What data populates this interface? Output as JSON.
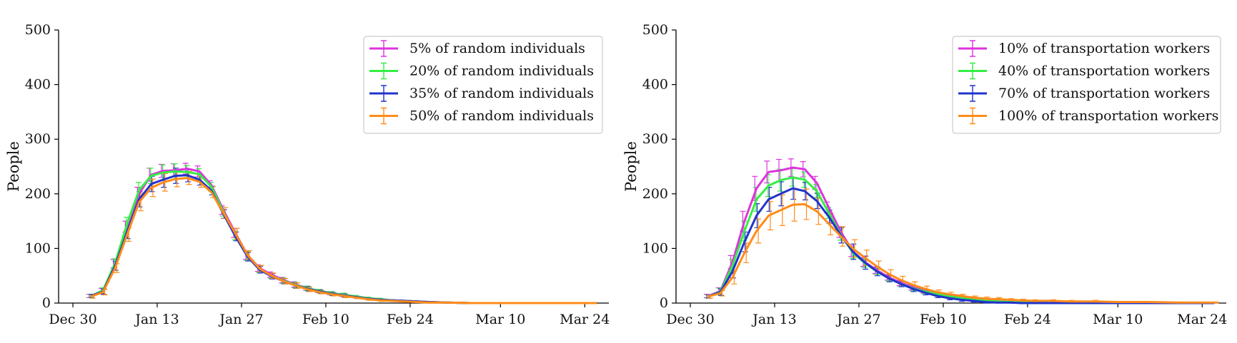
{
  "chart_data": [
    {
      "type": "line",
      "ylabel": "People",
      "xlabel": "",
      "title": "",
      "ylim": [
        0,
        500
      ],
      "yticks": [
        0,
        100,
        200,
        300,
        400,
        500
      ],
      "x_range": [
        "2019-12-30",
        "2020-03-28"
      ],
      "xticks": [
        {
          "date": "2019-12-30",
          "label": "Dec 30"
        },
        {
          "date": "2020-01-13",
          "label": "Jan 13"
        },
        {
          "date": "2020-01-27",
          "label": "Jan 27"
        },
        {
          "date": "2020-02-10",
          "label": "Feb 10"
        },
        {
          "date": "2020-02-24",
          "label": "Feb 24"
        },
        {
          "date": "2020-03-10",
          "label": "Mar 10"
        },
        {
          "date": "2020-03-24",
          "label": "Mar 24"
        }
      ],
      "legend_position": "top-right",
      "error_bars": true,
      "x": [
        "2020-01-02",
        "2020-01-04",
        "2020-01-06",
        "2020-01-08",
        "2020-01-10",
        "2020-01-12",
        "2020-01-14",
        "2020-01-16",
        "2020-01-18",
        "2020-01-20",
        "2020-01-22",
        "2020-01-24",
        "2020-01-26",
        "2020-01-28",
        "2020-01-30",
        "2020-02-01",
        "2020-02-03",
        "2020-02-05",
        "2020-02-07",
        "2020-02-09",
        "2020-02-11",
        "2020-02-13",
        "2020-02-15",
        "2020-02-17",
        "2020-02-19",
        "2020-02-21",
        "2020-02-23",
        "2020-02-25",
        "2020-02-27",
        "2020-03-01",
        "2020-03-05",
        "2020-03-10",
        "2020-03-15",
        "2020-03-20",
        "2020-03-26"
      ],
      "series": [
        {
          "name": "5% of random individuals",
          "color": "#dd33dd",
          "values": [
            13,
            22,
            72,
            140,
            200,
            235,
            242,
            243,
            246,
            241,
            216,
            170,
            128,
            88,
            64,
            52,
            42,
            34,
            27,
            22,
            18,
            15,
            12,
            9,
            7,
            5,
            4,
            3,
            2,
            1,
            0,
            0,
            0,
            0,
            0
          ],
          "errors": [
            3,
            5,
            8,
            10,
            12,
            12,
            12,
            12,
            10,
            10,
            8,
            8,
            8,
            8,
            6,
            5,
            5,
            5,
            4,
            3,
            3,
            3,
            2,
            2,
            2,
            1,
            1,
            1,
            1,
            0,
            0,
            0,
            0,
            0,
            0
          ]
        },
        {
          "name": "20% of random individuals",
          "color": "#33ee44",
          "values": [
            13,
            23,
            73,
            145,
            207,
            233,
            239,
            241,
            240,
            236,
            213,
            167,
            124,
            86,
            62,
            50,
            41,
            33,
            27,
            22,
            18,
            15,
            12,
            9,
            7,
            5,
            4,
            3,
            2,
            1,
            0,
            0,
            0,
            0,
            0
          ],
          "errors": [
            3,
            5,
            8,
            12,
            14,
            14,
            14,
            14,
            12,
            10,
            8,
            8,
            8,
            8,
            6,
            5,
            5,
            5,
            4,
            3,
            3,
            3,
            2,
            2,
            2,
            1,
            1,
            1,
            1,
            0,
            0,
            0,
            0,
            0,
            0
          ]
        },
        {
          "name": "35% of random individuals",
          "color": "#2233cc",
          "values": [
            13,
            21,
            68,
            130,
            190,
            218,
            226,
            233,
            234,
            226,
            206,
            163,
            122,
            85,
            61,
            49,
            40,
            32,
            26,
            21,
            17,
            14,
            11,
            8,
            6,
            5,
            4,
            3,
            2,
            1,
            0,
            0,
            0,
            0,
            0
          ],
          "errors": [
            3,
            5,
            8,
            12,
            14,
            14,
            14,
            14,
            12,
            10,
            8,
            8,
            8,
            8,
            6,
            5,
            5,
            5,
            4,
            3,
            3,
            3,
            2,
            2,
            2,
            1,
            1,
            1,
            1,
            0,
            0,
            0,
            0,
            0,
            0
          ]
        },
        {
          "name": "50% of random individuals",
          "color": "#ff8c1a",
          "values": [
            12,
            20,
            64,
            125,
            185,
            211,
            221,
            227,
            229,
            222,
            203,
            165,
            127,
            88,
            63,
            50,
            40,
            32,
            25,
            20,
            16,
            13,
            10,
            7,
            5,
            4,
            3,
            2,
            1,
            1,
            0,
            0,
            0,
            0,
            0
          ],
          "errors": [
            3,
            5,
            8,
            12,
            16,
            16,
            16,
            14,
            12,
            10,
            10,
            10,
            10,
            8,
            6,
            5,
            5,
            5,
            4,
            3,
            3,
            3,
            2,
            2,
            2,
            1,
            1,
            1,
            1,
            0,
            0,
            0,
            0,
            0,
            0
          ]
        }
      ]
    },
    {
      "type": "line",
      "ylabel": "People",
      "xlabel": "",
      "title": "",
      "ylim": [
        0,
        500
      ],
      "yticks": [
        0,
        100,
        200,
        300,
        400,
        500
      ],
      "x_range": [
        "2019-12-30",
        "2020-03-28"
      ],
      "xticks": [
        {
          "date": "2019-12-30",
          "label": "Dec 30"
        },
        {
          "date": "2020-01-13",
          "label": "Jan 13"
        },
        {
          "date": "2020-01-27",
          "label": "Jan 27"
        },
        {
          "date": "2020-02-10",
          "label": "Feb 10"
        },
        {
          "date": "2020-02-24",
          "label": "Feb 24"
        },
        {
          "date": "2020-03-10",
          "label": "Mar 10"
        },
        {
          "date": "2020-03-24",
          "label": "Mar 24"
        }
      ],
      "legend_position": "top-right",
      "error_bars": true,
      "x": [
        "2020-01-02",
        "2020-01-04",
        "2020-01-06",
        "2020-01-08",
        "2020-01-10",
        "2020-01-12",
        "2020-01-14",
        "2020-01-16",
        "2020-01-18",
        "2020-01-20",
        "2020-01-22",
        "2020-01-24",
        "2020-01-26",
        "2020-01-28",
        "2020-01-30",
        "2020-02-01",
        "2020-02-03",
        "2020-02-05",
        "2020-02-07",
        "2020-02-09",
        "2020-02-11",
        "2020-02-13",
        "2020-02-15",
        "2020-02-17",
        "2020-02-19",
        "2020-02-21",
        "2020-02-23",
        "2020-02-25",
        "2020-02-28",
        "2020-03-02",
        "2020-03-06",
        "2020-03-10",
        "2020-03-15",
        "2020-03-20",
        "2020-03-26"
      ],
      "series": [
        {
          "name": "10% of transportation workers",
          "color": "#dd33dd",
          "values": [
            13,
            22,
            75,
            150,
            210,
            240,
            243,
            248,
            245,
            220,
            175,
            130,
            95,
            75,
            60,
            47,
            37,
            29,
            22,
            17,
            13,
            10,
            7,
            5,
            3,
            2,
            1,
            1,
            0,
            0,
            0,
            0,
            0,
            0,
            0
          ],
          "errors": [
            3,
            6,
            12,
            18,
            22,
            20,
            20,
            16,
            14,
            12,
            10,
            10,
            10,
            8,
            6,
            5,
            5,
            5,
            4,
            3,
            3,
            3,
            2,
            2,
            1,
            1,
            1,
            1,
            0,
            0,
            0,
            0,
            0,
            0,
            0
          ]
        },
        {
          "name": "40% of transportation workers",
          "color": "#33ee44",
          "values": [
            12,
            21,
            68,
            132,
            190,
            215,
            225,
            230,
            226,
            205,
            165,
            125,
            92,
            73,
            58,
            45,
            35,
            27,
            21,
            16,
            12,
            9,
            6,
            4,
            3,
            2,
            1,
            1,
            0,
            0,
            0,
            0,
            0,
            0,
            0
          ],
          "errors": [
            3,
            6,
            12,
            18,
            22,
            20,
            20,
            16,
            14,
            12,
            10,
            10,
            10,
            8,
            6,
            5,
            5,
            5,
            4,
            3,
            3,
            3,
            2,
            2,
            1,
            1,
            1,
            1,
            0,
            0,
            0,
            0,
            0,
            0,
            0
          ]
        },
        {
          "name": "70% of transportation workers",
          "color": "#2233cc",
          "values": [
            12,
            20,
            58,
            112,
            160,
            190,
            200,
            210,
            205,
            187,
            158,
            124,
            94,
            74,
            58,
            45,
            35,
            26,
            19,
            13,
            9,
            6,
            4,
            2,
            1,
            1,
            0,
            0,
            0,
            0,
            0,
            0,
            0,
            0,
            0
          ],
          "errors": [
            3,
            6,
            12,
            18,
            22,
            22,
            22,
            20,
            16,
            14,
            12,
            14,
            14,
            12,
            8,
            6,
            5,
            5,
            4,
            3,
            3,
            3,
            2,
            2,
            1,
            1,
            1,
            1,
            0,
            0,
            0,
            0,
            0,
            0,
            0
          ]
        },
        {
          "name": "100% of transportation workers",
          "color": "#ff8c1a",
          "values": [
            12,
            18,
            47,
            92,
            132,
            160,
            170,
            180,
            181,
            168,
            145,
            122,
            100,
            83,
            67,
            53,
            42,
            33,
            26,
            20,
            16,
            13,
            10,
            8,
            7,
            6,
            5,
            4,
            4,
            3,
            3,
            2,
            2,
            1,
            1
          ],
          "errors": [
            3,
            5,
            12,
            18,
            22,
            26,
            28,
            30,
            28,
            24,
            20,
            18,
            16,
            14,
            10,
            8,
            7,
            6,
            5,
            4,
            4,
            3,
            3,
            3,
            3,
            2,
            2,
            2,
            2,
            2,
            2,
            1,
            1,
            1,
            1
          ]
        }
      ]
    }
  ]
}
